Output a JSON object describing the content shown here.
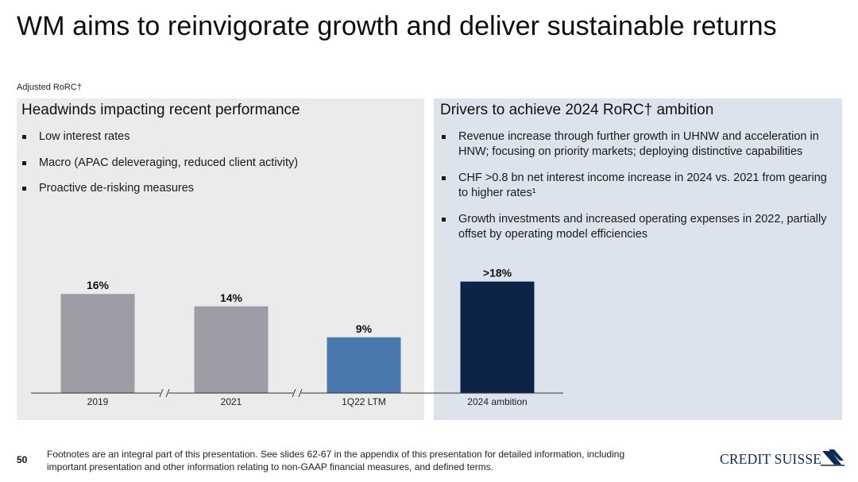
{
  "slide": {
    "title": "WM aims to reinvigorate growth and deliver sustainable returns",
    "metric_label": "Adjusted RoRC†",
    "page_number": "50",
    "footnote": "Footnotes are an integral part of this presentation. See slides 62-67 in the appendix of this presentation for detailed information, including important presentation and other information relating to non-GAAP financial measures, and defined terms.",
    "logo_text": "CREDIT SUISSE"
  },
  "left_panel": {
    "title": "Headwinds impacting recent performance",
    "bullets": [
      "Low interest rates",
      "Macro (APAC deleveraging, reduced client activity)",
      "Proactive de-risking measures"
    ]
  },
  "right_panel": {
    "title": "Drivers to achieve 2024 RoRC† ambition",
    "bullets": [
      "Revenue increase through further growth in UHNW and acceleration in HNW; focusing on priority markets; deploying distinctive capabilities",
      "CHF >0.8 bn net interest income increase in 2024 vs. 2021 from gearing to higher rates¹",
      "Growth investments and increased operating expenses in 2022, partially offset by operating model efficiencies"
    ]
  },
  "colors": {
    "historic": "#9c9da6",
    "current": "#4a78ad",
    "ambition": "#0c2547",
    "left_panel_bg": "#ebebeb",
    "right_panel_bg": "#dde3ec"
  },
  "chart_data": {
    "type": "bar",
    "categories": [
      "2019",
      "2021",
      "1Q22 LTM",
      "2024 ambition"
    ],
    "values": [
      16,
      14,
      9,
      18
    ],
    "data_labels": [
      "16%",
      "14%",
      "9%",
      ">18%"
    ],
    "color_keys": [
      "historic",
      "historic",
      "current",
      "ambition"
    ],
    "axis_breaks": [
      "after 2019",
      "after 2021"
    ],
    "unit": "%",
    "ylim": [
      0,
      18
    ],
    "grid": false
  }
}
